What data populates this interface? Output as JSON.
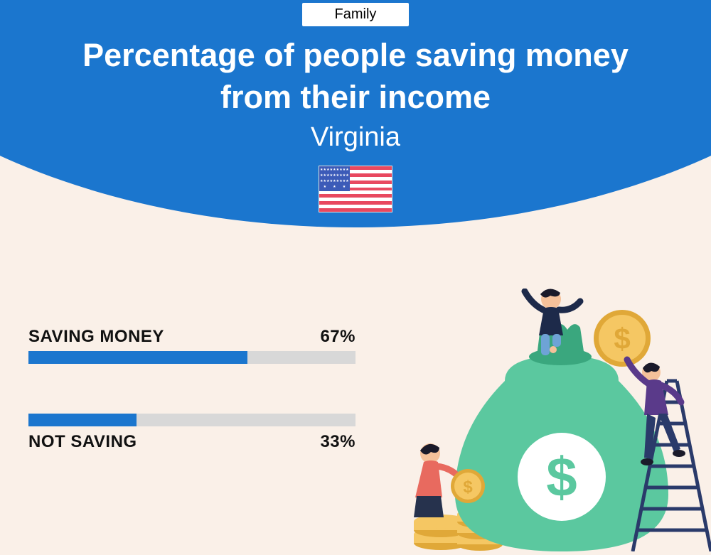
{
  "category": "Family",
  "title": "Percentage of people saving money from their income",
  "location": "Virginia",
  "colors": {
    "primary": "#1b76ce",
    "background": "#faf0e8",
    "bar_track": "#d8d8d8",
    "bar_fill": "#1b76ce",
    "text": "#111111",
    "flag_red": "#e8485f",
    "flag_white": "#ffffff",
    "flag_blue": "#3c5bb8"
  },
  "bars": [
    {
      "label": "SAVING MONEY",
      "value": 67,
      "display": "67%",
      "label_position": "above"
    },
    {
      "label": "NOT SAVING",
      "value": 33,
      "display": "33%",
      "label_position": "below"
    }
  ],
  "illustration": {
    "bag_color": "#5bc89f",
    "bag_dark": "#3aa77e",
    "coin_color": "#f5c763",
    "coin_dark": "#e0a838",
    "person1_top": "#1d2a4a",
    "person1_bottom": "#6ea3d6",
    "person2_top": "#5a3a8a",
    "person2_bottom": "#2a3a6a",
    "person3_top": "#e86a5f",
    "person3_bottom": "#26324d",
    "skin": "#f5c19a",
    "ladder": "#2a3a6a"
  }
}
